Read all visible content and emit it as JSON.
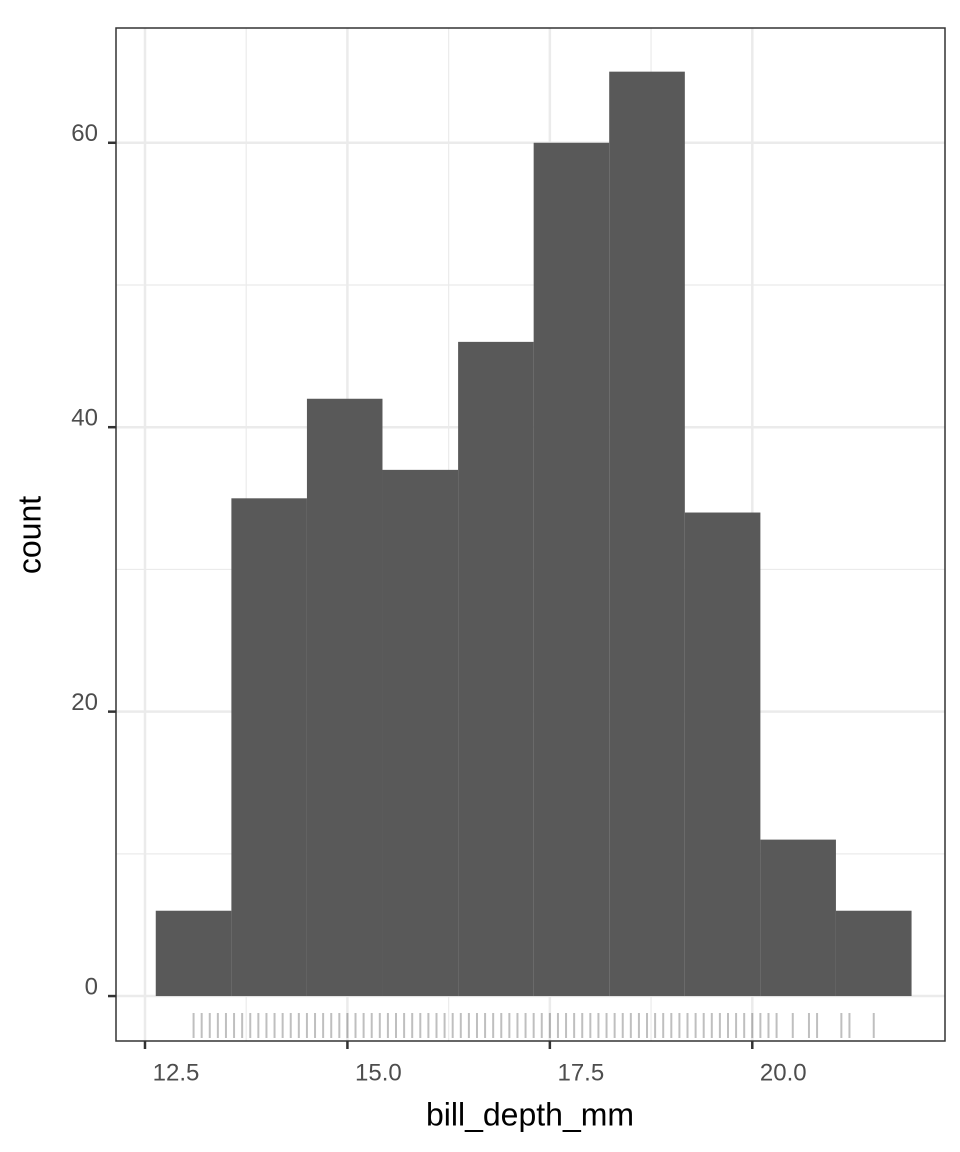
{
  "chart_data": {
    "type": "histogram",
    "x_label": "bill_depth_mm",
    "y_label": "count",
    "bins": [
      12.633,
      13.567,
      14.5,
      15.433,
      16.367,
      17.3,
      18.233,
      19.167,
      20.1,
      21.033,
      21.967
    ],
    "values": [
      6,
      35,
      42,
      37,
      46,
      60,
      65,
      34,
      11,
      6
    ],
    "color": "#595959",
    "rug": [
      13.1,
      13.2,
      13.3,
      13.4,
      13.5,
      13.6,
      13.7,
      13.8,
      13.9,
      14.0,
      14.1,
      14.2,
      14.3,
      14.4,
      14.5,
      14.6,
      14.7,
      14.8,
      14.9,
      15.0,
      15.1,
      15.2,
      15.3,
      15.4,
      15.5,
      15.6,
      15.7,
      15.8,
      15.9,
      16.0,
      16.1,
      16.2,
      16.3,
      16.4,
      16.5,
      16.6,
      16.7,
      16.8,
      16.9,
      17.0,
      17.1,
      17.2,
      17.3,
      17.4,
      17.5,
      17.6,
      17.7,
      17.8,
      17.9,
      18.0,
      18.1,
      18.2,
      18.3,
      18.4,
      18.5,
      18.6,
      18.7,
      18.8,
      18.9,
      19.0,
      19.1,
      19.2,
      19.3,
      19.4,
      19.5,
      19.6,
      19.7,
      19.8,
      19.9,
      20.0,
      20.1,
      20.2,
      20.3,
      20.5,
      20.7,
      20.8,
      21.1,
      21.2,
      21.5
    ],
    "xlim": [
      12.142,
      22.38
    ],
    "ylim": [
      -3.16,
      68.07
    ],
    "xticks": [
      12.5,
      {
        "value": 15.0,
        "label": "15.0"
      },
      17.5,
      {
        "value": 20.0,
        "label": "20.0"
      }
    ],
    "yticks": [
      0,
      20,
      40,
      60
    ],
    "grid": true
  }
}
